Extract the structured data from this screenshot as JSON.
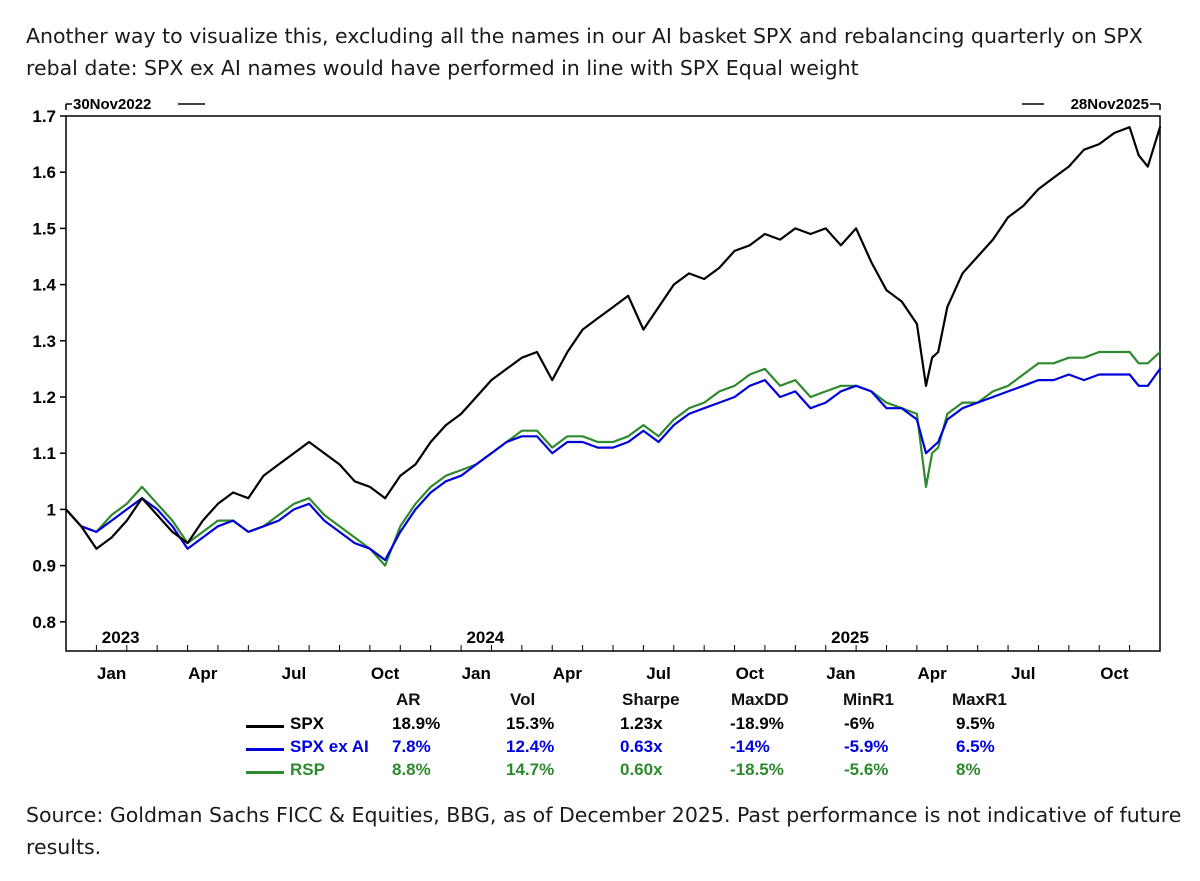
{
  "caption": {
    "title": "Another way to visualize this, excluding all the names in our AI basket SPX and rebalancing quarterly on SPX rebal date: SPX ex AI names would have performed in line with SPX Equal weight",
    "source": "Source: Goldman Sachs FICC & Equities, BBG, as of December 2025. Past performance is not indicative of future results."
  },
  "chart_data": {
    "type": "line",
    "title": "",
    "xlabel": "",
    "ylabel": "",
    "start_label": "30Nov2022",
    "end_label": "28Nov2025",
    "ylim": [
      0.75,
      1.7
    ],
    "y_ticks": [
      {
        "value": 1.7,
        "label": "1.7"
      },
      {
        "value": 1.6,
        "label": "1.6"
      },
      {
        "value": 1.5,
        "label": "1.5"
      },
      {
        "value": 1.4,
        "label": "1.4"
      },
      {
        "value": 1.3,
        "label": "1.3"
      },
      {
        "value": 1.2,
        "label": "1.2"
      },
      {
        "value": 1.1,
        "label": "1.1"
      },
      {
        "value": 1.0,
        "label": "1"
      },
      {
        "value": 0.9,
        "label": "0.9"
      },
      {
        "value": 0.8,
        "label": "0.8"
      }
    ],
    "xlim": [
      0,
      36
    ],
    "x_ticks": [
      {
        "value": 1.5,
        "label": "Jan"
      },
      {
        "value": 4.5,
        "label": "Apr"
      },
      {
        "value": 7.5,
        "label": "Jul"
      },
      {
        "value": 10.5,
        "label": "Oct"
      },
      {
        "value": 13.5,
        "label": "Jan"
      },
      {
        "value": 16.5,
        "label": "Apr"
      },
      {
        "value": 19.5,
        "label": "Jul"
      },
      {
        "value": 22.5,
        "label": "Oct"
      },
      {
        "value": 25.5,
        "label": "Jan"
      },
      {
        "value": 28.5,
        "label": "Apr"
      },
      {
        "value": 31.5,
        "label": "Jul"
      },
      {
        "value": 34.5,
        "label": "Oct"
      }
    ],
    "year_labels": [
      {
        "value": 1.8,
        "label": "2023"
      },
      {
        "value": 13.8,
        "label": "2024"
      },
      {
        "value": 25.8,
        "label": "2025"
      }
    ],
    "series": [
      {
        "name": "SPX",
        "color": "#000000",
        "x": [
          0,
          0.5,
          1,
          1.5,
          2,
          2.5,
          3,
          3.5,
          4,
          4.5,
          5,
          5.5,
          6,
          6.5,
          7,
          7.5,
          8,
          8.5,
          9,
          9.5,
          10,
          10.5,
          11,
          11.5,
          12,
          12.5,
          13,
          13.5,
          14,
          14.5,
          15,
          15.5,
          16,
          16.5,
          17,
          17.5,
          18,
          18.5,
          19,
          19.5,
          20,
          20.5,
          21,
          21.5,
          22,
          22.5,
          23,
          23.5,
          24,
          24.5,
          25,
          25.5,
          26,
          26.5,
          27,
          27.5,
          28,
          28.3,
          28.5,
          28.7,
          29,
          29.5,
          30,
          30.5,
          31,
          31.5,
          32,
          32.5,
          33,
          33.5,
          34,
          34.5,
          35,
          35.3,
          35.6,
          36
        ],
        "values": [
          1.0,
          0.97,
          0.93,
          0.95,
          0.98,
          1.02,
          0.99,
          0.96,
          0.94,
          0.98,
          1.01,
          1.03,
          1.02,
          1.06,
          1.08,
          1.1,
          1.12,
          1.1,
          1.08,
          1.05,
          1.04,
          1.02,
          1.06,
          1.08,
          1.12,
          1.15,
          1.17,
          1.2,
          1.23,
          1.25,
          1.27,
          1.28,
          1.23,
          1.28,
          1.32,
          1.34,
          1.36,
          1.38,
          1.32,
          1.36,
          1.4,
          1.42,
          1.41,
          1.43,
          1.46,
          1.47,
          1.49,
          1.48,
          1.5,
          1.49,
          1.5,
          1.47,
          1.5,
          1.44,
          1.39,
          1.37,
          1.33,
          1.22,
          1.27,
          1.28,
          1.36,
          1.42,
          1.45,
          1.48,
          1.52,
          1.54,
          1.57,
          1.59,
          1.61,
          1.64,
          1.65,
          1.67,
          1.68,
          1.63,
          1.61,
          1.68
        ]
      },
      {
        "name": "SPX ex AI",
        "color": "#0000dd",
        "x": [
          0,
          0.5,
          1,
          1.5,
          2,
          2.5,
          3,
          3.5,
          4,
          4.5,
          5,
          5.5,
          6,
          6.5,
          7,
          7.5,
          8,
          8.5,
          9,
          9.5,
          10,
          10.5,
          11,
          11.5,
          12,
          12.5,
          13,
          13.5,
          14,
          14.5,
          15,
          15.5,
          16,
          16.5,
          17,
          17.5,
          18,
          18.5,
          19,
          19.5,
          20,
          20.5,
          21,
          21.5,
          22,
          22.5,
          23,
          23.5,
          24,
          24.5,
          25,
          25.5,
          26,
          26.5,
          27,
          27.5,
          28,
          28.3,
          28.5,
          28.7,
          29,
          29.5,
          30,
          30.5,
          31,
          31.5,
          32,
          32.5,
          33,
          33.5,
          34,
          34.5,
          35,
          35.3,
          35.6,
          36
        ],
        "values": [
          1.0,
          0.97,
          0.96,
          0.98,
          1.0,
          1.02,
          1.0,
          0.97,
          0.93,
          0.95,
          0.97,
          0.98,
          0.96,
          0.97,
          0.98,
          1.0,
          1.01,
          0.98,
          0.96,
          0.94,
          0.93,
          0.91,
          0.96,
          1.0,
          1.03,
          1.05,
          1.06,
          1.08,
          1.1,
          1.12,
          1.13,
          1.13,
          1.1,
          1.12,
          1.12,
          1.11,
          1.11,
          1.12,
          1.14,
          1.12,
          1.15,
          1.17,
          1.18,
          1.19,
          1.2,
          1.22,
          1.23,
          1.2,
          1.21,
          1.18,
          1.19,
          1.21,
          1.22,
          1.21,
          1.18,
          1.18,
          1.16,
          1.1,
          1.11,
          1.12,
          1.16,
          1.18,
          1.19,
          1.2,
          1.21,
          1.22,
          1.23,
          1.23,
          1.24,
          1.23,
          1.24,
          1.24,
          1.24,
          1.22,
          1.22,
          1.25
        ]
      },
      {
        "name": "RSP",
        "color": "#2e8a2e",
        "x": [
          0,
          0.5,
          1,
          1.5,
          2,
          2.5,
          3,
          3.5,
          4,
          4.5,
          5,
          5.5,
          6,
          6.5,
          7,
          7.5,
          8,
          8.5,
          9,
          9.5,
          10,
          10.5,
          11,
          11.5,
          12,
          12.5,
          13,
          13.5,
          14,
          14.5,
          15,
          15.5,
          16,
          16.5,
          17,
          17.5,
          18,
          18.5,
          19,
          19.5,
          20,
          20.5,
          21,
          21.5,
          22,
          22.5,
          23,
          23.5,
          24,
          24.5,
          25,
          25.5,
          26,
          26.5,
          27,
          27.5,
          28,
          28.3,
          28.5,
          28.7,
          29,
          29.5,
          30,
          30.5,
          31,
          31.5,
          32,
          32.5,
          33,
          33.5,
          34,
          34.5,
          35,
          35.3,
          35.6,
          36
        ],
        "values": [
          1.0,
          0.97,
          0.96,
          0.99,
          1.01,
          1.04,
          1.01,
          0.98,
          0.94,
          0.96,
          0.98,
          0.98,
          0.96,
          0.97,
          0.99,
          1.01,
          1.02,
          0.99,
          0.97,
          0.95,
          0.93,
          0.9,
          0.97,
          1.01,
          1.04,
          1.06,
          1.07,
          1.08,
          1.1,
          1.12,
          1.14,
          1.14,
          1.11,
          1.13,
          1.13,
          1.12,
          1.12,
          1.13,
          1.15,
          1.13,
          1.16,
          1.18,
          1.19,
          1.21,
          1.22,
          1.24,
          1.25,
          1.22,
          1.23,
          1.2,
          1.21,
          1.22,
          1.22,
          1.21,
          1.19,
          1.18,
          1.17,
          1.04,
          1.1,
          1.11,
          1.17,
          1.19,
          1.19,
          1.21,
          1.22,
          1.24,
          1.26,
          1.26,
          1.27,
          1.27,
          1.28,
          1.28,
          1.28,
          1.26,
          1.26,
          1.28
        ]
      }
    ]
  },
  "stats_table": {
    "headers": [
      "AR",
      "Vol",
      "Sharpe",
      "MaxDD",
      "MinR1",
      "MaxR1"
    ],
    "rows": [
      {
        "name": "SPX",
        "color": "#000000",
        "cells": [
          "18.9%",
          "15.3%",
          "1.23x",
          "-18.9%",
          "-6%",
          "9.5%"
        ]
      },
      {
        "name": "SPX ex AI",
        "color": "#0000dd",
        "cells": [
          "7.8%",
          "12.4%",
          "0.63x",
          "-14%",
          "-5.9%",
          "6.5%"
        ]
      },
      {
        "name": "RSP",
        "color": "#2e8a2e",
        "cells": [
          "8.8%",
          "14.7%",
          "0.60x",
          "-18.5%",
          "-5.6%",
          "8%"
        ]
      }
    ]
  }
}
